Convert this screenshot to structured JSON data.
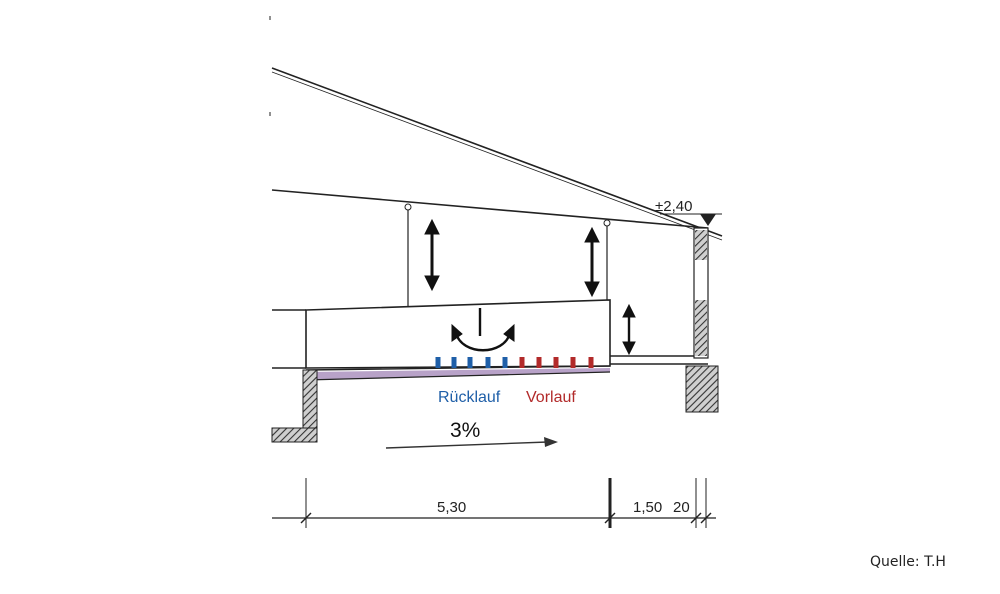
{
  "labels": {
    "elevation": "±2,40",
    "return_label": "Rücklauf",
    "supply_label": "Vorlauf",
    "slope": "3%",
    "dim_main": "5,30",
    "dim_side": "1,50",
    "dim_wall": "20"
  },
  "source": "Quelle: T.H",
  "colors": {
    "return": "#1f5fa8",
    "supply": "#b22a2a",
    "line": "#222222",
    "hatch": "#333333"
  }
}
